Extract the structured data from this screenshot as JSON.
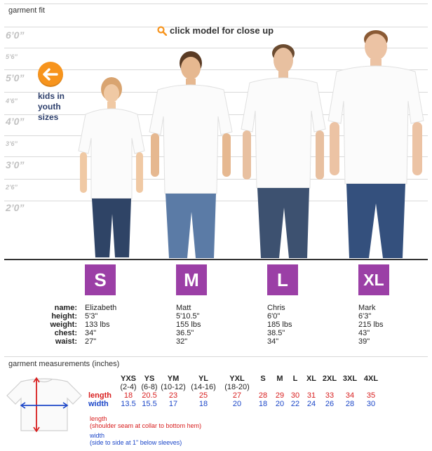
{
  "garment_fit": {
    "title": "garment fit",
    "closeup_text": "click model for close up",
    "kids_text_lines": [
      "kids in",
      "youth",
      "sizes"
    ],
    "height_labels": [
      "6’0”",
      "5’6”",
      "5’0”",
      "4’6”",
      "4’0”",
      "3’6”",
      "3’0”",
      "2’6”",
      "2’0”"
    ]
  },
  "stat_labels": [
    "name:",
    "height:",
    "weight:",
    "chest:",
    "waist:"
  ],
  "models": [
    {
      "size": "S",
      "name": "Elizabeth",
      "height": "5'3\"",
      "weight": "133 lbs",
      "chest": "34\"",
      "waist": "27\""
    },
    {
      "size": "M",
      "name": "Matt",
      "height": "5'10.5\"",
      "weight": "155 lbs",
      "chest": "36.5\"",
      "waist": "32\""
    },
    {
      "size": "L",
      "name": "Chris",
      "height": "6'0\"",
      "weight": "185 lbs",
      "chest": "38.5\"",
      "waist": "34\""
    },
    {
      "size": "XL",
      "name": "Mark",
      "height": "6'3\"",
      "weight": "215 lbs",
      "chest": "43\"",
      "waist": "39\""
    }
  ],
  "measurements": {
    "title": "garment measurements (inches)",
    "sizes": [
      "YXS",
      "YS",
      "YM",
      "YL",
      "YXL",
      "S",
      "M",
      "L",
      "XL",
      "2XL",
      "3XL",
      "4XL"
    ],
    "sub": [
      "(2-4)",
      "(6-8)",
      "(10-12)",
      "(14-16)",
      "(18-20)",
      "",
      "",
      "",
      "",
      "",
      "",
      ""
    ],
    "length_label": "length",
    "width_label": "width",
    "length": [
      "18",
      "20.5",
      "23",
      "25",
      "27",
      "28",
      "29",
      "30",
      "31",
      "33",
      "34",
      "35"
    ],
    "width": [
      "13.5",
      "15.5",
      "17",
      "18",
      "20",
      "18",
      "20",
      "22",
      "24",
      "26",
      "28",
      "30"
    ],
    "length_note_title": "length",
    "length_note": "(shoulder seam at collar to bottom hem)",
    "width_note_title": "width",
    "width_note": "(side to side at 1\" below sleeves)"
  },
  "colors": {
    "badge": "#9b3fa6",
    "length": "#d81e1e",
    "width": "#1b46c8",
    "kids_arrow": "#f7941d"
  },
  "icons": {
    "closeup": "magnifier-icon",
    "kids": "left-arrow-icon"
  }
}
